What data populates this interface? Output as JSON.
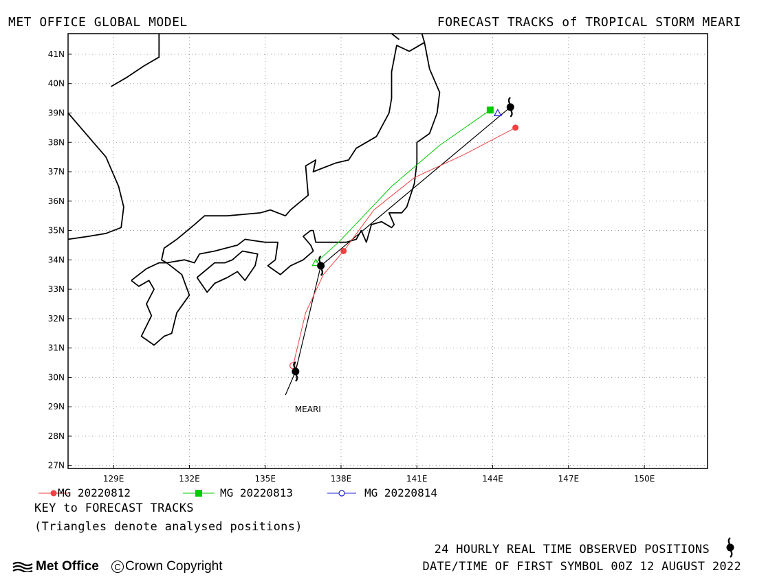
{
  "header": {
    "left_title": "MET OFFICE GLOBAL MODEL",
    "right_title": "FORECAST TRACKS of TROPICAL STORM MEARI"
  },
  "map": {
    "lon_range": [
      127.2,
      152.5
    ],
    "lat_range": [
      26.9,
      41.7
    ],
    "lon_ticks": [
      "129E",
      "132E",
      "135E",
      "138E",
      "141E",
      "144E",
      "147E",
      "150E"
    ],
    "lat_ticks": [
      "27N",
      "28N",
      "29N",
      "30N",
      "31N",
      "32N",
      "33N",
      "34N",
      "35N",
      "36N",
      "37N",
      "38N",
      "39N",
      "40N",
      "41N"
    ],
    "grid": "dotted",
    "storm_label": "MEARI"
  },
  "chart_data": {
    "type": "line",
    "title": "FORECAST TRACKS of TROPICAL STORM MEARI",
    "series": [
      {
        "name": "MG 20220812",
        "color": "#f04040",
        "marker": "filled-circle",
        "points": [
          [
            136.1,
            30.4
          ],
          [
            136.6,
            32.2
          ],
          [
            137.3,
            33.5
          ],
          [
            138.1,
            34.3
          ],
          [
            139.3,
            35.7
          ],
          [
            140.9,
            36.8
          ],
          [
            142.9,
            37.6
          ],
          [
            144.9,
            38.5
          ]
        ]
      },
      {
        "name": "MG 20220813",
        "color": "#00cc00",
        "marker": "filled-square",
        "points": [
          [
            137.0,
            33.9
          ],
          [
            137.9,
            34.6
          ],
          [
            140.0,
            36.5
          ],
          [
            141.9,
            37.9
          ],
          [
            143.9,
            39.1
          ]
        ]
      },
      {
        "name": "MG 20220814",
        "color": "#2020dd",
        "marker": "open-circle",
        "points": [
          [
            144.2,
            39.0
          ]
        ]
      }
    ],
    "observed_track": [
      [
        135.8,
        29.4
      ],
      [
        136.2,
        30.2
      ],
      [
        137.2,
        33.8
      ],
      [
        144.7,
        39.2
      ]
    ],
    "observed_symbol_positions": [
      [
        136.2,
        30.2
      ],
      [
        137.2,
        33.8
      ],
      [
        144.7,
        39.2
      ]
    ]
  },
  "legend": [
    {
      "label": "MG 20220812",
      "color": "#f04040",
      "marker": "filled-circle"
    },
    {
      "label": "MG 20220813",
      "color": "#00cc00",
      "marker": "filled-square"
    },
    {
      "label": "MG 20220814",
      "color": "#2020dd",
      "marker": "open-circle"
    }
  ],
  "key": {
    "title": "KEY to FORECAST TRACKS",
    "note": "(Triangles denote analysed positions)"
  },
  "footer": {
    "observed_positions": "24 HOURLY REAL TIME OBSERVED POSITIONS",
    "first_symbol": "DATE/TIME OF FIRST SYMBOL 00Z 12 AUGUST 2022",
    "logo": "Met Office",
    "copyright": "Crown Copyright",
    "crown_glyph": "C"
  },
  "coastline": [
    [
      [
        128.9,
        39.9
      ],
      [
        129.5,
        40.2
      ],
      [
        130.2,
        40.6
      ],
      [
        130.8,
        40.9
      ],
      [
        130.8,
        41.7
      ]
    ],
    [
      [
        127.2,
        39.0
      ],
      [
        128.2,
        38.0
      ],
      [
        128.7,
        37.5
      ],
      [
        129.2,
        36.5
      ],
      [
        129.4,
        35.8
      ],
      [
        129.3,
        35.1
      ],
      [
        128.7,
        34.9
      ],
      [
        128.0,
        34.8
      ],
      [
        127.2,
        34.7
      ]
    ],
    [
      [
        129.7,
        33.3
      ],
      [
        130.0,
        33.1
      ],
      [
        130.4,
        33.3
      ],
      [
        130.6,
        33.0
      ],
      [
        130.3,
        32.5
      ],
      [
        130.5,
        32.1
      ],
      [
        130.1,
        31.4
      ],
      [
        130.6,
        31.1
      ],
      [
        131.0,
        31.4
      ],
      [
        131.3,
        31.5
      ],
      [
        131.5,
        32.2
      ],
      [
        132.0,
        32.8
      ],
      [
        131.7,
        33.5
      ],
      [
        131.1,
        33.9
      ],
      [
        130.8,
        33.9
      ],
      [
        130.3,
        33.7
      ],
      [
        129.7,
        33.3
      ]
    ],
    [
      [
        131.1,
        33.9
      ],
      [
        131.8,
        34.0
      ],
      [
        132.2,
        33.9
      ],
      [
        132.4,
        34.2
      ],
      [
        133.0,
        34.3
      ],
      [
        133.9,
        34.5
      ],
      [
        134.2,
        34.7
      ],
      [
        135.0,
        34.6
      ],
      [
        135.5,
        34.6
      ],
      [
        135.4,
        34.0
      ],
      [
        135.1,
        33.8
      ],
      [
        135.6,
        33.5
      ],
      [
        136.0,
        33.8
      ],
      [
        136.5,
        34.0
      ],
      [
        136.9,
        34.3
      ],
      [
        136.8,
        34.5
      ],
      [
        136.5,
        34.8
      ],
      [
        136.8,
        35.0
      ],
      [
        136.9,
        35.0
      ],
      [
        137.0,
        34.6
      ],
      [
        137.5,
        34.6
      ],
      [
        138.2,
        34.6
      ],
      [
        138.6,
        34.7
      ],
      [
        138.8,
        35.0
      ],
      [
        139.0,
        34.6
      ],
      [
        139.2,
        35.2
      ],
      [
        139.6,
        35.3
      ],
      [
        140.0,
        35.1
      ],
      [
        140.1,
        35.2
      ],
      [
        139.9,
        35.6
      ],
      [
        140.4,
        35.6
      ],
      [
        140.6,
        35.8
      ],
      [
        140.9,
        36.6
      ],
      [
        141.0,
        37.3
      ],
      [
        141.0,
        38.0
      ],
      [
        141.5,
        38.3
      ],
      [
        141.8,
        39.0
      ],
      [
        141.9,
        39.7
      ],
      [
        141.5,
        40.5
      ],
      [
        141.3,
        41.4
      ],
      [
        140.7,
        41.1
      ],
      [
        140.2,
        41.3
      ],
      [
        140.0,
        40.4
      ],
      [
        140.0,
        39.5
      ],
      [
        139.9,
        39.0
      ],
      [
        139.4,
        38.2
      ],
      [
        138.6,
        37.8
      ],
      [
        138.3,
        37.4
      ],
      [
        137.8,
        37.3
      ],
      [
        136.9,
        37.0
      ],
      [
        137.0,
        37.4
      ],
      [
        136.6,
        37.2
      ],
      [
        136.7,
        36.2
      ],
      [
        136.0,
        35.7
      ],
      [
        135.8,
        35.5
      ],
      [
        135.2,
        35.7
      ],
      [
        134.8,
        35.6
      ],
      [
        133.5,
        35.5
      ],
      [
        132.6,
        35.5
      ],
      [
        132.2,
        35.2
      ],
      [
        131.5,
        34.7
      ],
      [
        131.0,
        34.4
      ],
      [
        130.9,
        34.0
      ],
      [
        131.1,
        33.9
      ]
    ],
    [
      [
        132.3,
        33.4
      ],
      [
        133.0,
        33.9
      ],
      [
        133.4,
        33.9
      ],
      [
        133.7,
        34.0
      ],
      [
        134.1,
        34.3
      ],
      [
        134.7,
        34.2
      ],
      [
        134.6,
        33.8
      ],
      [
        134.2,
        33.3
      ],
      [
        133.9,
        33.6
      ],
      [
        133.5,
        33.4
      ],
      [
        133.0,
        33.2
      ],
      [
        132.7,
        32.9
      ],
      [
        132.3,
        33.4
      ]
    ],
    [
      [
        141.3,
        41.4
      ],
      [
        141.2,
        41.7
      ]
    ],
    [
      [
        140.3,
        41.5
      ],
      [
        140.0,
        41.7
      ]
    ]
  ]
}
